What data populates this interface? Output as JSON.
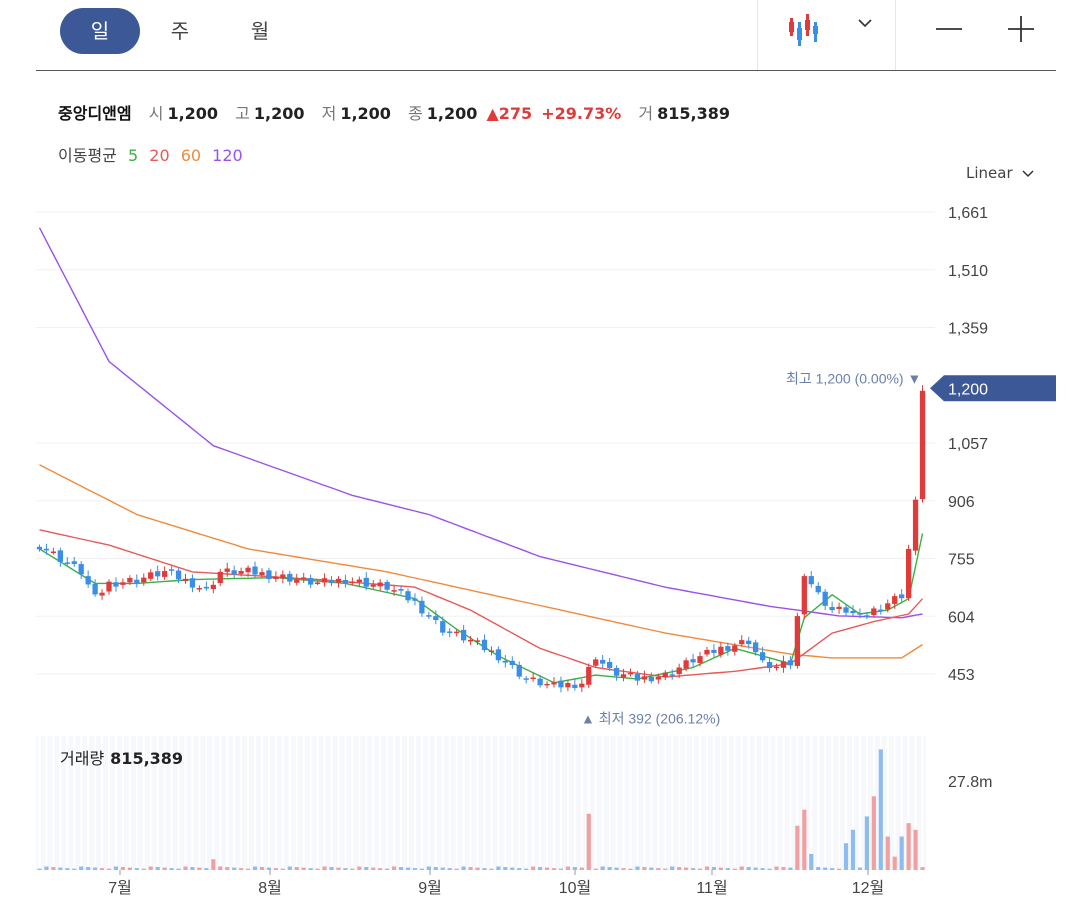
{
  "tabs": [
    {
      "label": "일",
      "active": true
    },
    {
      "label": "주",
      "active": false
    },
    {
      "label": "월",
      "active": false
    }
  ],
  "toolbar": {
    "chart_type_icon": "candlestick-icon",
    "dropdown_icon": "chevron-down-icon",
    "zoom_out_icon": "minus-icon",
    "zoom_in_icon": "plus-icon"
  },
  "stock": {
    "name": "중앙디앤엠",
    "open_label": "시",
    "open": "1,200",
    "high_label": "고",
    "high": "1,200",
    "low_label": "저",
    "low": "1,200",
    "close_label": "종",
    "close": "1,200",
    "change": "▲275",
    "change_pct": "+29.73%",
    "volume_label": "거",
    "volume": "815,389"
  },
  "moving_average": {
    "label": "이동평균",
    "periods": [
      {
        "label": "5",
        "color": "#3cb043"
      },
      {
        "label": "20",
        "color": "#e55a5a"
      },
      {
        "label": "60",
        "color": "#f08a3c"
      },
      {
        "label": "120",
        "color": "#9b52e8"
      }
    ]
  },
  "scale_label": "Linear",
  "annotations": {
    "high_label": "최고",
    "high_value": "1,200 (0.00%)",
    "low_label": "최저",
    "low_value": "392 (206.12%)",
    "current_price": "1,200"
  },
  "volume_panel": {
    "label": "거래량",
    "value": "815,389",
    "axis_label": "27.8m"
  },
  "colors": {
    "up": "#e03b3b",
    "down": "#3a8ee6",
    "accent": "#3d5896",
    "ma5": "#3cb043",
    "ma20": "#e55a5a",
    "ma60": "#f08a3c",
    "ma120": "#9b52e8"
  },
  "chart_data": {
    "type": "candlestick",
    "y_ticks": [
      "1,661",
      "1,510",
      "1,359",
      "1,057",
      "906",
      "755",
      "604",
      "453"
    ],
    "y_tick_values": [
      1661,
      1510,
      1359,
      1057,
      906,
      755,
      604,
      453
    ],
    "ylim": [
      400,
      1700
    ],
    "x_ticks": [
      "7월",
      "8월",
      "9월",
      "10월",
      "11월",
      "12월"
    ],
    "price_keyframes": [
      [
        0,
        790
      ],
      [
        6,
        720
      ],
      [
        8,
        650
      ],
      [
        10,
        690
      ],
      [
        14,
        700
      ],
      [
        18,
        720
      ],
      [
        22,
        690
      ],
      [
        24,
        670
      ],
      [
        26,
        720
      ],
      [
        30,
        720
      ],
      [
        34,
        710
      ],
      [
        40,
        690
      ],
      [
        44,
        700
      ],
      [
        50,
        680
      ],
      [
        54,
        640
      ],
      [
        58,
        570
      ],
      [
        62,
        540
      ],
      [
        66,
        500
      ],
      [
        70,
        440
      ],
      [
        74,
        420
      ],
      [
        78,
        430
      ],
      [
        80,
        500
      ],
      [
        82,
        460
      ],
      [
        86,
        440
      ],
      [
        90,
        450
      ],
      [
        94,
        490
      ],
      [
        98,
        520
      ],
      [
        102,
        540
      ],
      [
        104,
        480
      ],
      [
        106,
        470
      ],
      [
        108,
        480
      ],
      [
        110,
        720
      ],
      [
        112,
        660
      ],
      [
        114,
        620
      ],
      [
        116,
        620
      ],
      [
        118,
        600
      ],
      [
        120,
        620
      ],
      [
        122,
        640
      ],
      [
        124,
        660
      ],
      [
        126,
        900
      ],
      [
        127,
        1200
      ]
    ],
    "ma5": [
      [
        0,
        780
      ],
      [
        8,
        690
      ],
      [
        14,
        690
      ],
      [
        22,
        700
      ],
      [
        34,
        705
      ],
      [
        44,
        690
      ],
      [
        54,
        650
      ],
      [
        60,
        570
      ],
      [
        66,
        500
      ],
      [
        74,
        430
      ],
      [
        80,
        450
      ],
      [
        86,
        440
      ],
      [
        94,
        470
      ],
      [
        100,
        520
      ],
      [
        104,
        500
      ],
      [
        108,
        480
      ],
      [
        110,
        600
      ],
      [
        114,
        660
      ],
      [
        118,
        610
      ],
      [
        122,
        620
      ],
      [
        125,
        650
      ],
      [
        127,
        820
      ]
    ],
    "ma20": [
      [
        0,
        830
      ],
      [
        10,
        790
      ],
      [
        22,
        720
      ],
      [
        40,
        700
      ],
      [
        54,
        680
      ],
      [
        62,
        620
      ],
      [
        72,
        520
      ],
      [
        80,
        470
      ],
      [
        90,
        445
      ],
      [
        100,
        460
      ],
      [
        108,
        480
      ],
      [
        114,
        560
      ],
      [
        120,
        590
      ],
      [
        125,
        610
      ],
      [
        127,
        650
      ]
    ],
    "ma60": [
      [
        0,
        1000
      ],
      [
        14,
        870
      ],
      [
        30,
        780
      ],
      [
        50,
        720
      ],
      [
        70,
        640
      ],
      [
        90,
        560
      ],
      [
        108,
        505
      ],
      [
        114,
        495
      ],
      [
        124,
        495
      ],
      [
        127,
        530
      ]
    ],
    "ma120": [
      [
        0,
        1620
      ],
      [
        10,
        1270
      ],
      [
        25,
        1050
      ],
      [
        45,
        920
      ],
      [
        56,
        870
      ],
      [
        72,
        760
      ],
      [
        90,
        680
      ],
      [
        105,
        630
      ],
      [
        115,
        605
      ],
      [
        124,
        600
      ],
      [
        127,
        610
      ]
    ],
    "volume_spikes": [
      [
        25,
        0.08
      ],
      [
        79,
        0.42
      ],
      [
        109,
        0.33
      ],
      [
        110,
        0.45
      ],
      [
        111,
        0.12
      ],
      [
        116,
        0.2
      ],
      [
        117,
        0.3
      ],
      [
        119,
        0.4
      ],
      [
        120,
        0.55
      ],
      [
        121,
        0.9
      ],
      [
        122,
        0.25
      ],
      [
        123,
        0.1
      ],
      [
        124,
        0.25
      ],
      [
        125,
        0.35
      ],
      [
        126,
        0.3
      ]
    ],
    "volume_max_label": "27.8m"
  }
}
